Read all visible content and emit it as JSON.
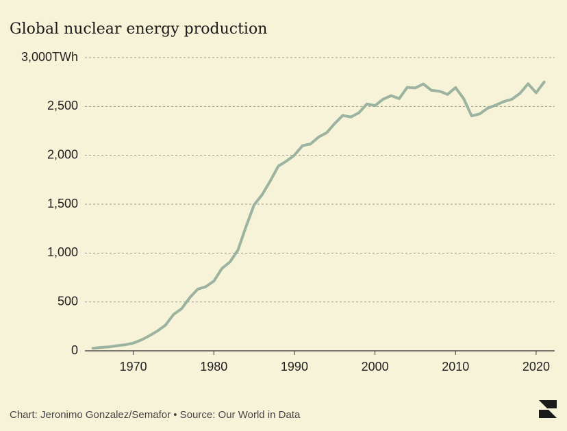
{
  "chart_data": {
    "type": "line",
    "title": "Global nuclear energy production",
    "source": "Chart: Jeronimo Gonzalez/Semafor • Source: Our World in Data",
    "x": [
      1965,
      1966,
      1967,
      1968,
      1969,
      1970,
      1971,
      1972,
      1973,
      1974,
      1975,
      1976,
      1977,
      1978,
      1979,
      1980,
      1981,
      1982,
      1983,
      1984,
      1985,
      1986,
      1987,
      1988,
      1989,
      1990,
      1991,
      1992,
      1993,
      1994,
      1995,
      1996,
      1997,
      1998,
      1999,
      2000,
      2001,
      2002,
      2003,
      2004,
      2005,
      2006,
      2007,
      2008,
      2009,
      2010,
      2011,
      2012,
      2013,
      2014,
      2015,
      2016,
      2017,
      2018,
      2019,
      2020,
      2021
    ],
    "values": [
      26,
      35,
      40,
      53,
      62,
      79,
      111,
      154,
      203,
      263,
      372,
      431,
      543,
      631,
      656,
      713,
      842,
      909,
      1032,
      1272,
      1493,
      1598,
      1737,
      1889,
      1940,
      2001,
      2099,
      2116,
      2187,
      2231,
      2325,
      2408,
      2392,
      2435,
      2525,
      2508,
      2574,
      2610,
      2580,
      2695,
      2689,
      2730,
      2665,
      2656,
      2623,
      2693,
      2580,
      2403,
      2424,
      2483,
      2514,
      2550,
      2574,
      2634,
      2732,
      2640,
      2750
    ],
    "color": "#9bb3a0",
    "xlim": [
      1964,
      2022.3
    ],
    "ylim": [
      0,
      3000
    ],
    "xticks": [
      1970,
      1980,
      1990,
      2000,
      2010,
      2020
    ],
    "yticks": [
      0,
      500,
      {
        "value": 1000,
        "label": "1,000"
      },
      {
        "value": 1500,
        "label": "1,500"
      },
      {
        "value": 2000,
        "label": "2,000"
      },
      {
        "value": 2500,
        "label": "2,500"
      },
      {
        "value": 3000,
        "label": "3,000TWh"
      }
    ],
    "grid": true
  }
}
